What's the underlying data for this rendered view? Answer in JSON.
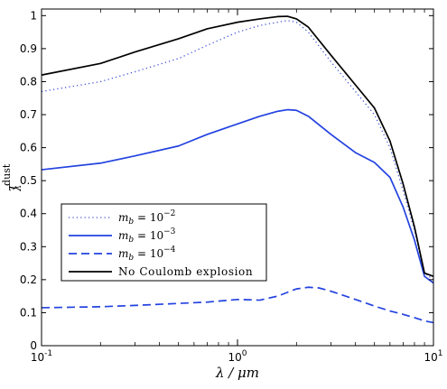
{
  "chart_data": {
    "type": "line",
    "title": "",
    "xlabel": "λ / μm",
    "ylabel": "τ",
    "ylabel_sub": "λ",
    "ylabel_sup": "dust",
    "xscale": "log",
    "xlim": [
      0.1,
      10
    ],
    "ylim": [
      0,
      1.02
    ],
    "grid": false,
    "legend_position": "lower-left",
    "x_ticks": [
      {
        "value": 0.1,
        "base": "10",
        "exp": "-1"
      },
      {
        "value": 1,
        "base": "10",
        "exp": "0"
      },
      {
        "value": 10,
        "base": "10",
        "exp": "1"
      }
    ],
    "y_ticks": [
      0,
      0.1,
      0.2,
      0.3,
      0.4,
      0.5,
      0.6,
      0.7,
      0.8,
      0.9,
      1
    ],
    "y_tick_labels": [
      "0",
      "0.1",
      "0.2",
      "0.3",
      "0.4",
      "0.5",
      "0.6",
      "0.7",
      "0.8",
      "0.9",
      "1"
    ],
    "series": [
      {
        "name": "m_b = 10^-2",
        "legend_parts": {
          "var": "m",
          "sub": "b",
          "eq": " = 10",
          "sup": "−2"
        },
        "color": "#3a4fd8",
        "dash": "dotted",
        "x": [
          0.1,
          0.2,
          0.3,
          0.5,
          0.7,
          1.0,
          1.3,
          1.6,
          1.8,
          2.0,
          2.3,
          3.0,
          4.0,
          5.0,
          6.0,
          7.0,
          8.0,
          9.0,
          10.0
        ],
        "y": [
          0.77,
          0.8,
          0.83,
          0.87,
          0.91,
          0.95,
          0.97,
          0.98,
          0.985,
          0.98,
          0.95,
          0.86,
          0.77,
          0.7,
          0.6,
          0.47,
          0.35,
          0.22,
          0.2
        ]
      },
      {
        "name": "m_b = 10^-3",
        "legend_parts": {
          "var": "m",
          "sub": "b",
          "eq": " = 10",
          "sup": "−3"
        },
        "color": "#2343e0",
        "dash": "solid",
        "x": [
          0.1,
          0.2,
          0.3,
          0.5,
          0.7,
          1.0,
          1.3,
          1.6,
          1.8,
          2.0,
          2.3,
          3.0,
          4.0,
          5.0,
          6.0,
          7.0,
          8.0,
          9.0,
          10.0
        ],
        "y": [
          0.533,
          0.553,
          0.575,
          0.605,
          0.64,
          0.672,
          0.695,
          0.71,
          0.715,
          0.713,
          0.695,
          0.64,
          0.585,
          0.555,
          0.51,
          0.42,
          0.32,
          0.21,
          0.19
        ]
      },
      {
        "name": "m_b = 10^-4",
        "legend_parts": {
          "var": "m",
          "sub": "b",
          "eq": " = 10",
          "sup": "−4"
        },
        "color": "#2343e0",
        "dash": "dashed",
        "x": [
          0.1,
          0.2,
          0.3,
          0.5,
          0.7,
          1.0,
          1.3,
          1.6,
          2.0,
          2.3,
          2.6,
          3.0,
          4.0,
          5.0,
          6.0,
          7.0,
          8.0,
          9.0,
          10.0
        ],
        "y": [
          0.115,
          0.118,
          0.122,
          0.128,
          0.132,
          0.14,
          0.138,
          0.15,
          0.172,
          0.177,
          0.175,
          0.165,
          0.14,
          0.12,
          0.105,
          0.095,
          0.085,
          0.075,
          0.07
        ]
      },
      {
        "name": "No Coulomb explosion",
        "legend_parts": {
          "var": "",
          "sub": "",
          "eq": "No Coulomb explosion",
          "sup": ""
        },
        "color": "#000000",
        "dash": "solid",
        "x": [
          0.1,
          0.2,
          0.3,
          0.5,
          0.7,
          1.0,
          1.3,
          1.6,
          1.8,
          2.0,
          2.3,
          3.0,
          4.0,
          5.0,
          6.0,
          7.0,
          8.0,
          9.0,
          10.0
        ],
        "y": [
          0.82,
          0.855,
          0.89,
          0.93,
          0.96,
          0.98,
          0.99,
          0.997,
          0.998,
          0.99,
          0.965,
          0.88,
          0.79,
          0.72,
          0.62,
          0.49,
          0.36,
          0.22,
          0.21
        ]
      }
    ]
  }
}
